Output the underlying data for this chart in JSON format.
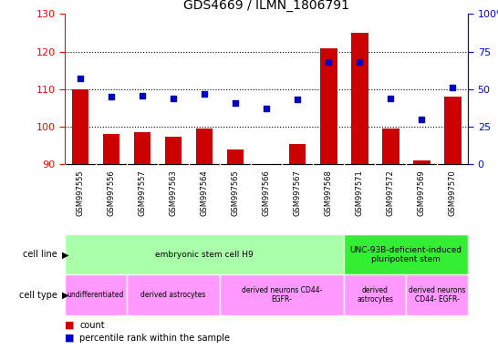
{
  "title": "GDS4669 / ILMN_1806791",
  "samples": [
    "GSM997555",
    "GSM997556",
    "GSM997557",
    "GSM997563",
    "GSM997564",
    "GSM997565",
    "GSM997566",
    "GSM997567",
    "GSM997568",
    "GSM997571",
    "GSM997572",
    "GSM997569",
    "GSM997570"
  ],
  "counts": [
    110,
    98,
    98.5,
    97.5,
    99.5,
    94,
    90,
    95.5,
    121,
    125,
    99.5,
    91,
    108
  ],
  "percentile": [
    57,
    45,
    46,
    44,
    47,
    41,
    37,
    43,
    68,
    68,
    44,
    30,
    51
  ],
  "ylim_left": [
    90,
    130
  ],
  "ylim_right": [
    0,
    100
  ],
  "yticks_left": [
    90,
    100,
    110,
    120,
    130
  ],
  "yticks_right": [
    0,
    25,
    50,
    75,
    100
  ],
  "bar_color": "#cc0000",
  "scatter_color": "#0000cc",
  "bar_bottom": 90,
  "cell_line_groups": [
    {
      "label": "embryonic stem cell H9",
      "start": 0,
      "end": 8,
      "color": "#aaffaa"
    },
    {
      "label": "UNC-93B-deficient-induced\npluripotent stem",
      "start": 9,
      "end": 12,
      "color": "#33ee33"
    }
  ],
  "cell_type_groups": [
    {
      "label": "undifferentiated",
      "start": 0,
      "end": 1,
      "color": "#ff99ff"
    },
    {
      "label": "derived astrocytes",
      "start": 2,
      "end": 4,
      "color": "#ff99ff"
    },
    {
      "label": "derived neurons CD44-\nEGFR-",
      "start": 5,
      "end": 8,
      "color": "#ff99ff"
    },
    {
      "label": "derived\nastrocytes",
      "start": 9,
      "end": 10,
      "color": "#ff99ff"
    },
    {
      "label": "derived neurons\nCD44- EGFR-",
      "start": 11,
      "end": 12,
      "color": "#ff99ff"
    }
  ],
  "legend_count_color": "#cc0000",
  "legend_pct_color": "#0000cc",
  "grid_dotted_levels": [
    100,
    110,
    120
  ],
  "tick_bg_color": "#cccccc",
  "cell_line_label_color": "#006600",
  "cell_type_label_color": "#660066"
}
